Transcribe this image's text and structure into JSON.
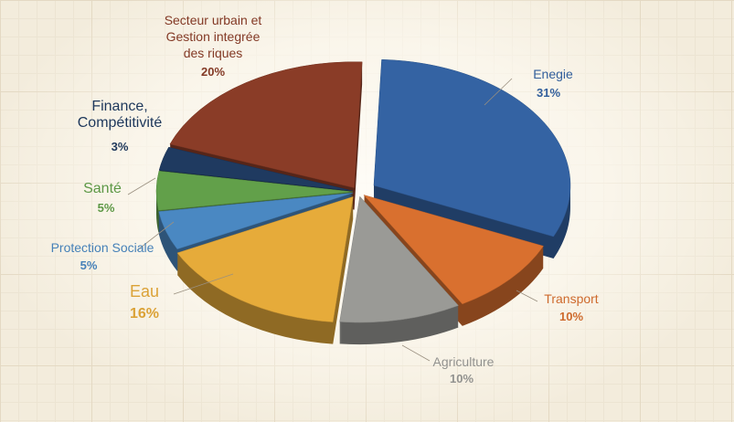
{
  "chart_data": {
    "type": "pie",
    "categories": [
      "Enegie",
      "Transport",
      "Agriculture",
      "Eau",
      "Protection Sociale",
      "Santé",
      "Finance, Compétitivité",
      "Secteur urbain et Gestion integrée des riques"
    ],
    "values": [
      31,
      10,
      10,
      16,
      5,
      5,
      3,
      20
    ],
    "value_labels": [
      "31%",
      "10%",
      "10%",
      "16%",
      "5%",
      "5%",
      "3%",
      "20%"
    ],
    "colors": [
      "#3463a3",
      "#d9702f",
      "#9a9a96",
      "#e6ab3a",
      "#4a88c2",
      "#62a04a",
      "#1f3a60",
      "#8a3c27"
    ]
  }
}
